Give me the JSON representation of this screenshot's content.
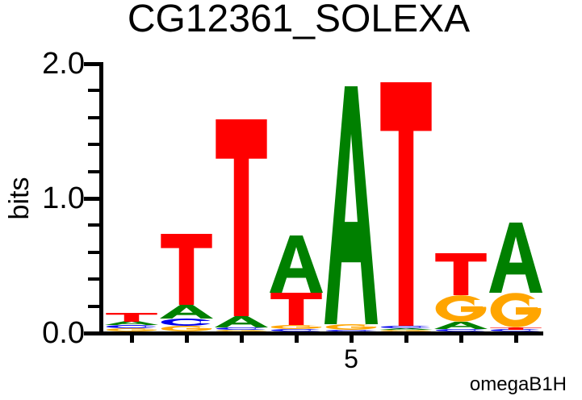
{
  "chart_data": {
    "type": "sequence_logo",
    "title": "CG12361_SOLEXA",
    "ylabel": "bits",
    "ylim": [
      0,
      2.0
    ],
    "yticks_major": [
      0.0,
      1.0,
      2.0
    ],
    "ytick_labels": [
      "0.0",
      "1.0",
      "2.0"
    ],
    "yticks_minor": [
      0.2,
      0.4,
      0.6,
      0.8,
      1.2,
      1.4,
      1.6,
      1.8
    ],
    "num_positions": 8,
    "xtick_label": "5",
    "xtick_label_position": 5,
    "attribution": "omegaB1H",
    "colors": {
      "A": "#008000",
      "C": "#0000EE",
      "G": "#FFA500",
      "T": "#FF0000"
    },
    "positions": [
      {
        "pos": 1,
        "stack": [
          {
            "base": "G",
            "bits": 0.022
          },
          {
            "base": "C",
            "bits": 0.025
          },
          {
            "base": "A",
            "bits": 0.028
          },
          {
            "base": "T",
            "bits": 0.065
          }
        ]
      },
      {
        "pos": 2,
        "stack": [
          {
            "base": "G",
            "bits": 0.042
          },
          {
            "base": "C",
            "bits": 0.054
          },
          {
            "base": "A",
            "bits": 0.102
          },
          {
            "base": "T",
            "bits": 0.527
          }
        ]
      },
      {
        "pos": 3,
        "stack": [
          {
            "base": "G",
            "bits": 0.012
          },
          {
            "base": "C",
            "bits": 0.02
          },
          {
            "base": "A",
            "bits": 0.084
          },
          {
            "base": "T",
            "bits": 1.461
          }
        ]
      },
      {
        "pos": 4,
        "stack": [
          {
            "base": "C",
            "bits": 0.018
          },
          {
            "base": "G",
            "bits": 0.03
          },
          {
            "base": "T",
            "bits": 0.24
          },
          {
            "base": "A",
            "bits": 0.425
          }
        ]
      },
      {
        "pos": 5,
        "stack": [
          {
            "base": "C",
            "bits": 0.012
          },
          {
            "base": "G",
            "bits": 0.042
          },
          {
            "base": "A",
            "bits": 1.766
          }
        ]
      },
      {
        "pos": 6,
        "stack": [
          {
            "base": "G",
            "bits": 0.01
          },
          {
            "base": "A",
            "bits": 0.012
          },
          {
            "base": "C",
            "bits": 0.02
          },
          {
            "base": "T",
            "bits": 1.808
          }
        ]
      },
      {
        "pos": 7,
        "stack": [
          {
            "base": "C",
            "bits": 0.018
          },
          {
            "base": "A",
            "bits": 0.054
          },
          {
            "base": "G",
            "bits": 0.198
          },
          {
            "base": "T",
            "bits": 0.311
          }
        ]
      },
      {
        "pos": 8,
        "stack": [
          {
            "base": "C",
            "bits": 0.015
          },
          {
            "base": "T",
            "bits": 0.015
          },
          {
            "base": "G",
            "bits": 0.257
          },
          {
            "base": "A",
            "bits": 0.521
          }
        ]
      }
    ]
  }
}
